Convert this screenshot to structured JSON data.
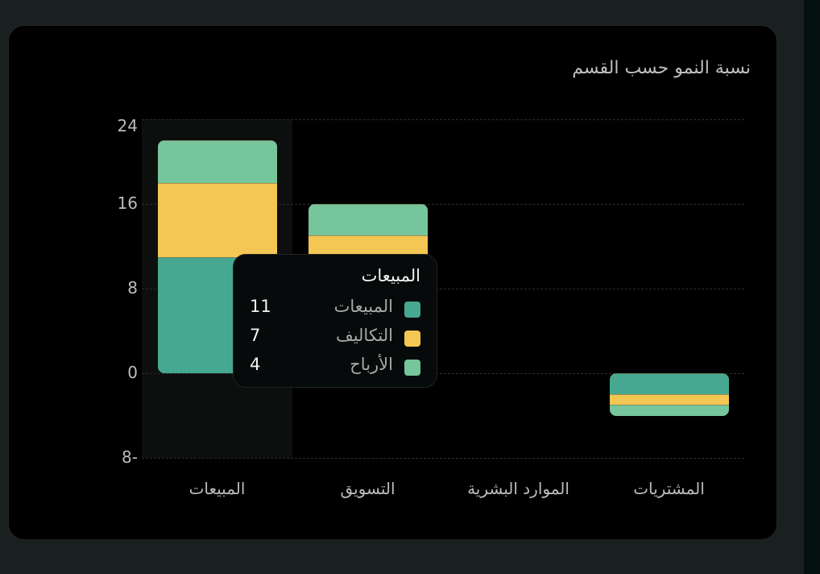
{
  "card": {
    "title": "نسبة النمو حسب القسم"
  },
  "colors": {
    "series_sales": "#46a890",
    "series_costs": "#f4c654",
    "series_profits": "#76c59c",
    "background": "#000000",
    "page_bg": "#1a1f1f",
    "hover_band": "#0d0e0e"
  },
  "y_axis": {
    "ticks": [
      "24",
      "16",
      "8",
      "0",
      "8-"
    ]
  },
  "x_axis": {
    "labels": [
      "المبيعات",
      "التسويق",
      "الموارد البشرية",
      "المشتريات"
    ]
  },
  "tooltip": {
    "title": "المبيعات",
    "rows": [
      {
        "label": "المبيعات",
        "value": "11",
        "color": "#46a890"
      },
      {
        "label": "التكاليف",
        "value": "7",
        "color": "#f4c654"
      },
      {
        "label": "الأرباح",
        "value": "4",
        "color": "#76c59c"
      }
    ]
  },
  "chart_data": {
    "type": "bar",
    "stacked": true,
    "title": "نسبة النمو حسب القسم",
    "xlabel": "",
    "ylabel": "",
    "categories": [
      "المبيعات",
      "التسويق",
      "الموارد البشرية",
      "المشتريات"
    ],
    "series": [
      {
        "name": "المبيعات",
        "color": "#46a890",
        "values": [
          11,
          10,
          0,
          -2
        ]
      },
      {
        "name": "التكاليف",
        "color": "#f4c654",
        "values": [
          7,
          3,
          0,
          -1
        ]
      },
      {
        "name": "الأرباح",
        "color": "#76c59c",
        "values": [
          4,
          3,
          0,
          -1
        ]
      }
    ],
    "ylim": [
      -8,
      24
    ],
    "yticks": [
      24,
      16,
      8,
      0,
      -8
    ],
    "grid": true,
    "legend": "tooltip",
    "active_category": "المبيعات"
  }
}
